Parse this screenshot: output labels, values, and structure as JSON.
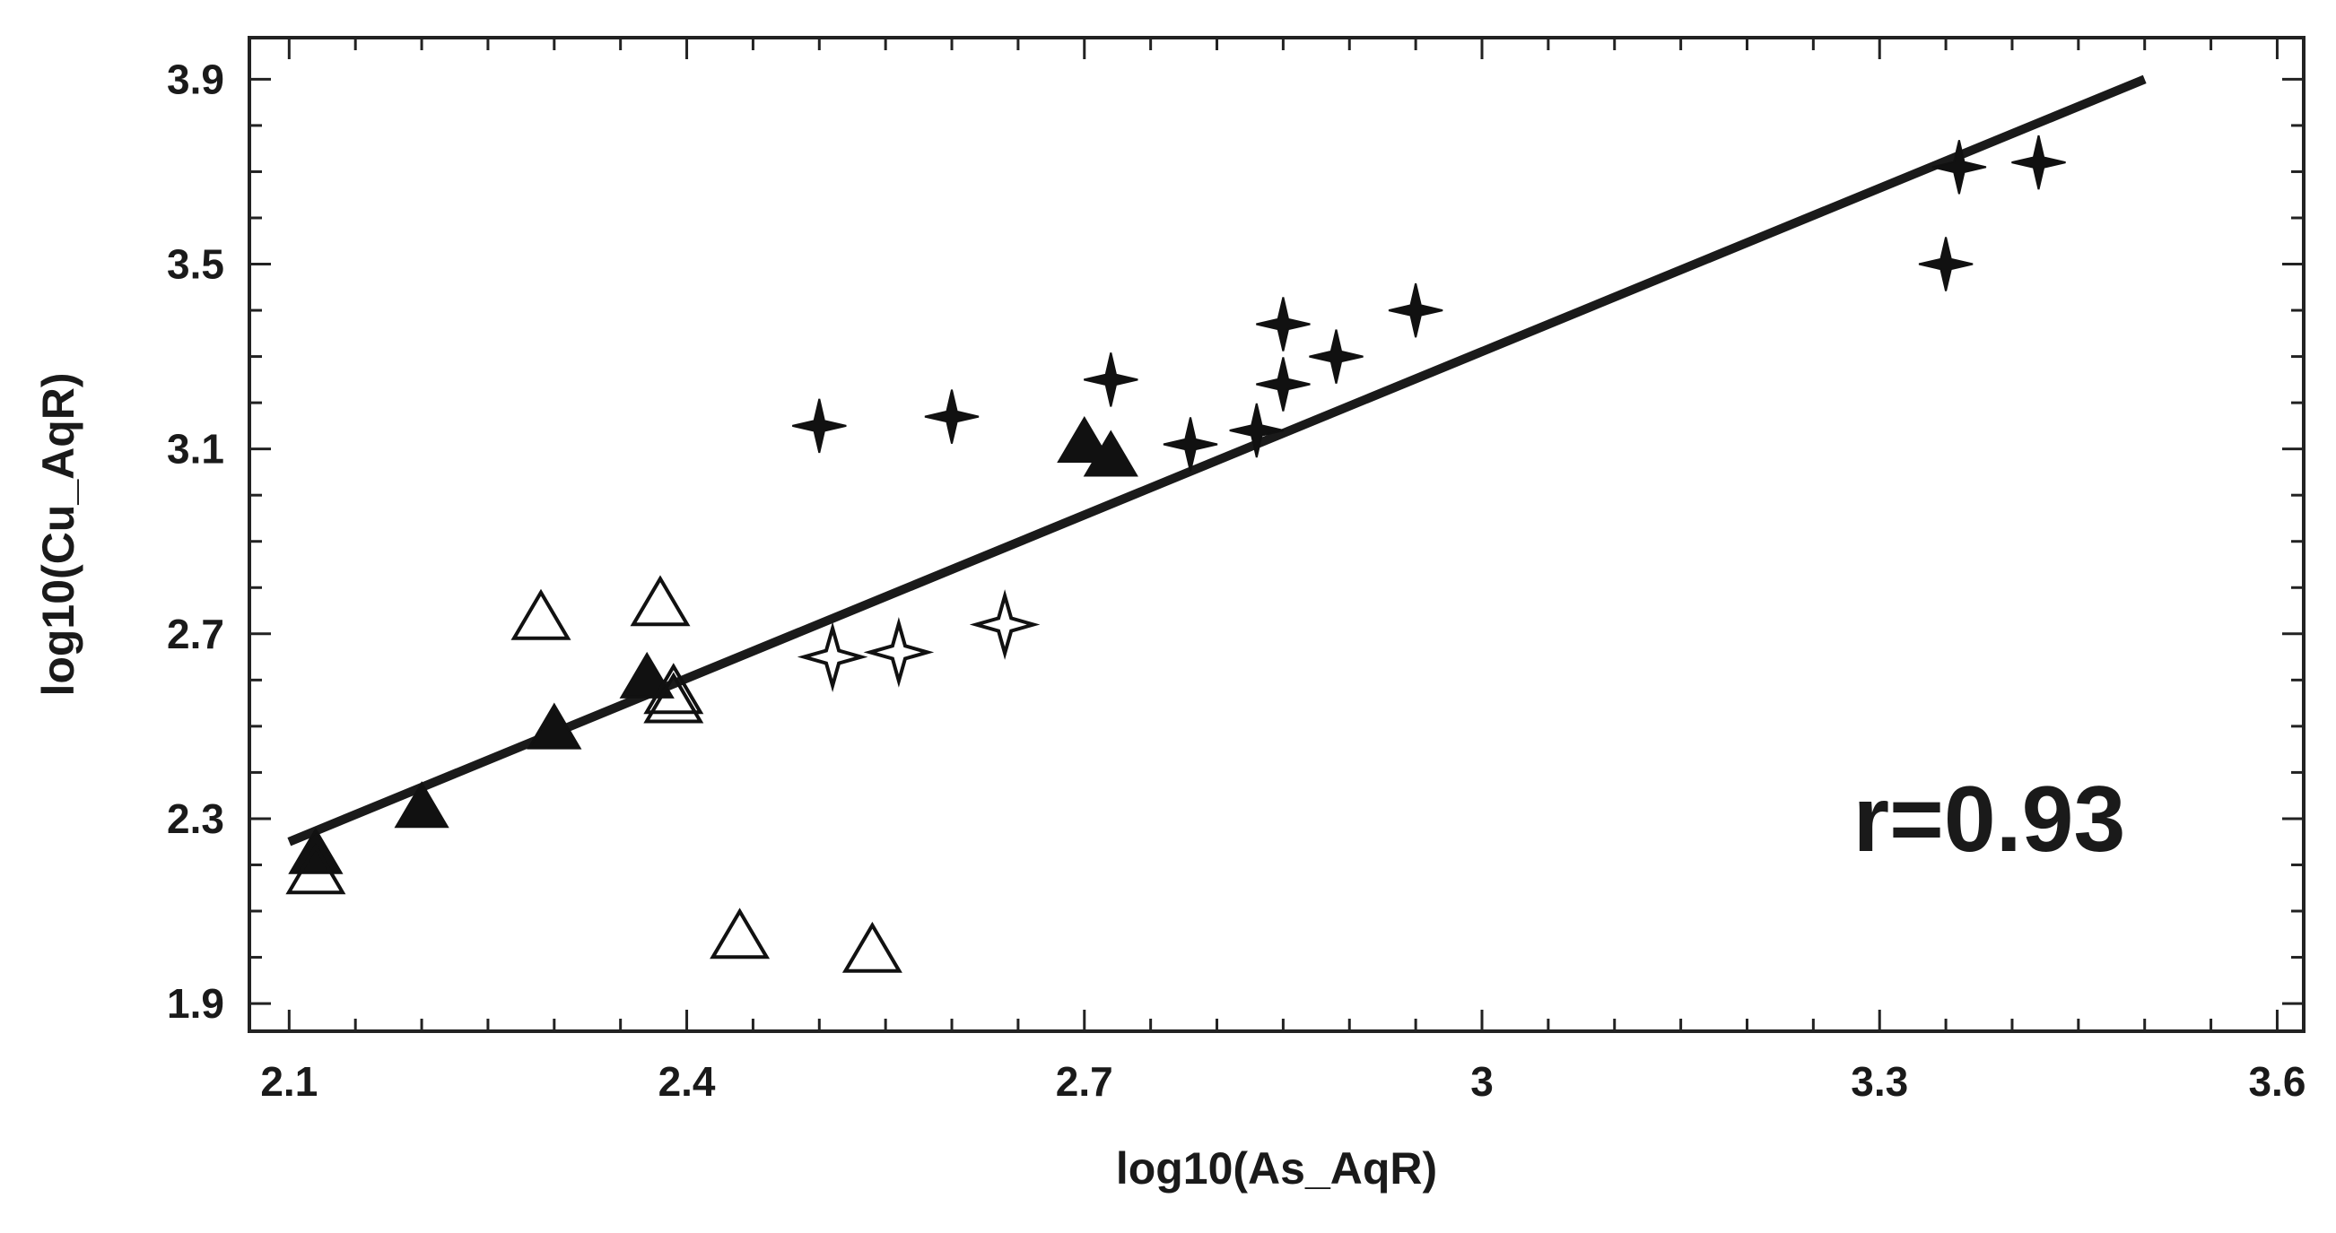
{
  "chart_data": {
    "type": "scatter",
    "title": "",
    "xlabel": "log10(As_AqR)",
    "ylabel": "log10(Cu_AqR)",
    "xlim": [
      2.07,
      3.62
    ],
    "ylim": [
      1.84,
      3.99
    ],
    "x_ticks": [
      {
        "value": 2.1,
        "label": "2.1"
      },
      {
        "value": 2.4,
        "label": "2.4"
      },
      {
        "value": 2.7,
        "label": "2.7"
      },
      {
        "value": 3.0,
        "label": "3"
      },
      {
        "value": 3.3,
        "label": "3.3"
      },
      {
        "value": 3.6,
        "label": "3.6"
      }
    ],
    "y_ticks": [
      {
        "value": 1.9,
        "label": "1.9"
      },
      {
        "value": 2.3,
        "label": "2.3"
      },
      {
        "value": 2.7,
        "label": "2.7"
      },
      {
        "value": 3.1,
        "label": "3.1"
      },
      {
        "value": 3.5,
        "label": "3.5"
      },
      {
        "value": 3.9,
        "label": "3.9"
      }
    ],
    "x_minor_step": 0.05,
    "y_minor_step": 0.1,
    "grid": false,
    "series": [
      {
        "marker": "filled-triangle",
        "points": [
          {
            "x": 2.12,
            "y": 2.22
          },
          {
            "x": 2.2,
            "y": 2.32
          },
          {
            "x": 2.3,
            "y": 2.49
          },
          {
            "x": 2.37,
            "y": 2.6
          },
          {
            "x": 2.7,
            "y": 3.11
          },
          {
            "x": 2.72,
            "y": 3.08
          }
        ]
      },
      {
        "marker": "open-triangle",
        "points": [
          {
            "x": 2.12,
            "y": 2.18
          },
          {
            "x": 2.29,
            "y": 2.73
          },
          {
            "x": 2.38,
            "y": 2.76
          },
          {
            "x": 2.39,
            "y": 2.57
          },
          {
            "x": 2.39,
            "y": 2.55
          },
          {
            "x": 2.44,
            "y": 2.04
          },
          {
            "x": 2.54,
            "y": 2.01
          }
        ]
      },
      {
        "marker": "filled-star",
        "points": [
          {
            "x": 2.5,
            "y": 3.15
          },
          {
            "x": 2.6,
            "y": 3.17
          },
          {
            "x": 2.72,
            "y": 3.25
          },
          {
            "x": 2.78,
            "y": 3.11
          },
          {
            "x": 2.83,
            "y": 3.14
          },
          {
            "x": 2.85,
            "y": 3.24
          },
          {
            "x": 2.85,
            "y": 3.37
          },
          {
            "x": 2.89,
            "y": 3.3
          },
          {
            "x": 2.95,
            "y": 3.4
          },
          {
            "x": 3.35,
            "y": 3.5
          },
          {
            "x": 3.36,
            "y": 3.71
          },
          {
            "x": 3.42,
            "y": 3.72
          }
        ]
      },
      {
        "marker": "open-star",
        "points": [
          {
            "x": 2.51,
            "y": 2.65
          },
          {
            "x": 2.56,
            "y": 2.66
          },
          {
            "x": 2.64,
            "y": 2.72
          }
        ]
      }
    ],
    "trendline": {
      "start": {
        "x": 2.1,
        "y": 2.25
      },
      "end": {
        "x": 3.5,
        "y": 3.9
      }
    },
    "annotation": {
      "text": "r=0.93",
      "x": 3.28,
      "y": 2.3
    }
  }
}
